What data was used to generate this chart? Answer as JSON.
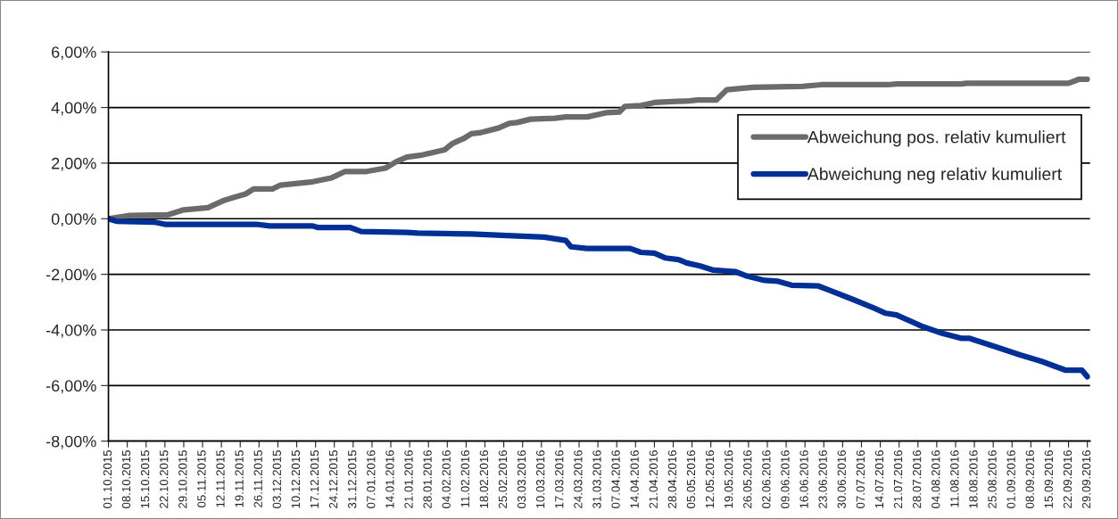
{
  "chart_data": {
    "type": "line",
    "series": [
      {
        "name": "Abweichung pos. relativ kumuliert",
        "color": "#6b6b6b",
        "x": [
          "2015-10-01",
          "2015-10-09",
          "2015-10-23",
          "2015-10-29",
          "2015-11-07",
          "2015-11-13",
          "2015-11-21",
          "2015-11-24",
          "2015-12-01",
          "2015-12-04",
          "2015-12-16",
          "2015-12-23",
          "2015-12-28",
          "2016-01-05",
          "2016-01-12",
          "2016-01-16",
          "2016-01-20",
          "2016-01-25",
          "2016-02-03",
          "2016-02-06",
          "2016-02-10",
          "2016-02-13",
          "2016-02-16",
          "2016-02-23",
          "2016-02-27",
          "2016-03-01",
          "2016-03-06",
          "2016-03-15",
          "2016-03-19",
          "2016-03-27",
          "2016-04-03",
          "2016-04-08",
          "2016-04-10",
          "2016-04-16",
          "2016-04-21",
          "2016-05-04",
          "2016-05-07",
          "2016-05-14",
          "2016-05-18",
          "2016-05-25",
          "2016-05-28",
          "2016-06-15",
          "2016-06-22",
          "2016-07-17",
          "2016-07-20",
          "2016-08-13",
          "2016-08-15",
          "2016-09-22",
          "2016-09-26",
          "2016-09-29"
        ],
        "values": [
          0,
          0.12,
          0.14,
          0.32,
          0.4,
          0.66,
          0.89,
          1.07,
          1.07,
          1.21,
          1.33,
          1.47,
          1.7,
          1.7,
          1.82,
          2.05,
          2.22,
          2.28,
          2.48,
          2.71,
          2.88,
          3.06,
          3.09,
          3.26,
          3.43,
          3.46,
          3.58,
          3.61,
          3.66,
          3.66,
          3.81,
          3.84,
          4.04,
          4.07,
          4.18,
          4.24,
          4.27,
          4.27,
          4.64,
          4.7,
          4.73,
          4.76,
          4.82,
          4.82,
          4.85,
          4.85,
          4.87,
          4.87,
          5.02,
          5.02
        ]
      },
      {
        "name": "Abweichung neg relativ kumuliert",
        "color": "#002f96",
        "x": [
          "2015-10-01",
          "2015-10-04",
          "2015-10-18",
          "2015-10-22",
          "2015-11-25",
          "2015-11-30",
          "2015-12-16",
          "2015-12-18",
          "2015-12-30",
          "2016-01-03",
          "2016-01-20",
          "2016-01-24",
          "2016-02-13",
          "2016-02-28",
          "2016-03-11",
          "2016-03-19",
          "2016-03-21",
          "2016-03-27",
          "2016-04-12",
          "2016-04-16",
          "2016-04-21",
          "2016-04-25",
          "2016-04-30",
          "2016-05-03",
          "2016-05-08",
          "2016-05-13",
          "2016-05-21",
          "2016-05-25",
          "2016-06-01",
          "2016-06-06",
          "2016-06-11",
          "2016-06-21",
          "2016-06-25",
          "2016-07-04",
          "2016-07-12",
          "2016-07-16",
          "2016-07-20",
          "2016-07-30",
          "2016-08-06",
          "2016-08-13",
          "2016-08-16",
          "2016-08-27",
          "2016-09-04",
          "2016-09-12",
          "2016-09-21",
          "2016-09-27",
          "2016-09-29"
        ],
        "values": [
          0,
          -0.09,
          -0.12,
          -0.2,
          -0.2,
          -0.26,
          -0.26,
          -0.32,
          -0.32,
          -0.46,
          -0.49,
          -0.52,
          -0.55,
          -0.61,
          -0.66,
          -0.78,
          -1.01,
          -1.07,
          -1.07,
          -1.21,
          -1.24,
          -1.41,
          -1.47,
          -1.59,
          -1.7,
          -1.85,
          -1.9,
          -2.05,
          -2.22,
          -2.25,
          -2.39,
          -2.42,
          -2.57,
          -2.91,
          -3.23,
          -3.4,
          -3.46,
          -3.89,
          -4.12,
          -4.3,
          -4.3,
          -4.64,
          -4.9,
          -5.13,
          -5.45,
          -5.45,
          -5.68
        ]
      }
    ],
    "xlim": [
      "2015-10-01",
      "2016-09-30"
    ],
    "xticks": [
      {
        "value": "2015-10-01",
        "label": "01.10.2015"
      },
      {
        "value": "2015-10-08",
        "label": "08.10.2015"
      },
      {
        "value": "2015-10-15",
        "label": "15.10.2015"
      },
      {
        "value": "2015-10-22",
        "label": "22.10.2015"
      },
      {
        "value": "2015-10-29",
        "label": "29.10.2015"
      },
      {
        "value": "2015-11-05",
        "label": "05.11.2015"
      },
      {
        "value": "2015-11-12",
        "label": "12.11.2015"
      },
      {
        "value": "2015-11-19",
        "label": "19.11.2015"
      },
      {
        "value": "2015-11-26",
        "label": "26.11.2015"
      },
      {
        "value": "2015-12-03",
        "label": "03.12.2015"
      },
      {
        "value": "2015-12-10",
        "label": "10.12.2015"
      },
      {
        "value": "2015-12-17",
        "label": "17.12.2015"
      },
      {
        "value": "2015-12-24",
        "label": "24.12.2015"
      },
      {
        "value": "2015-12-31",
        "label": "31.12.2015"
      },
      {
        "value": "2016-01-07",
        "label": "07.01.2016"
      },
      {
        "value": "2016-01-14",
        "label": "14.01.2016"
      },
      {
        "value": "2016-01-21",
        "label": "21.01.2016"
      },
      {
        "value": "2016-01-28",
        "label": "28.01.2016"
      },
      {
        "value": "2016-02-04",
        "label": "04.02.2016"
      },
      {
        "value": "2016-02-11",
        "label": "11.02.2016"
      },
      {
        "value": "2016-02-18",
        "label": "18.02.2016"
      },
      {
        "value": "2016-02-25",
        "label": "25.02.2016"
      },
      {
        "value": "2016-03-03",
        "label": "03.03.2016"
      },
      {
        "value": "2016-03-10",
        "label": "10.03.2016"
      },
      {
        "value": "2016-03-17",
        "label": "17.03.2016"
      },
      {
        "value": "2016-03-24",
        "label": "24.03.2016"
      },
      {
        "value": "2016-03-31",
        "label": "31.03.2016"
      },
      {
        "value": "2016-04-07",
        "label": "07.04.2016"
      },
      {
        "value": "2016-04-14",
        "label": "14.04.2016"
      },
      {
        "value": "2016-04-21",
        "label": "21.04.2016"
      },
      {
        "value": "2016-04-28",
        "label": "28.04.2016"
      },
      {
        "value": "2016-05-05",
        "label": "05.05.2016"
      },
      {
        "value": "2016-05-12",
        "label": "12.05.2016"
      },
      {
        "value": "2016-05-19",
        "label": "19.05.2016"
      },
      {
        "value": "2016-05-26",
        "label": "26.05.2016"
      },
      {
        "value": "2016-06-02",
        "label": "02.06.2016"
      },
      {
        "value": "2016-06-09",
        "label": "09.06.2016"
      },
      {
        "value": "2016-06-16",
        "label": "16.06.2016"
      },
      {
        "value": "2016-06-23",
        "label": "23.06.2016"
      },
      {
        "value": "2016-06-30",
        "label": "30.06.2016"
      },
      {
        "value": "2016-07-07",
        "label": "07.07.2016"
      },
      {
        "value": "2016-07-14",
        "label": "14.07.2016"
      },
      {
        "value": "2016-07-21",
        "label": "21.07.2016"
      },
      {
        "value": "2016-07-28",
        "label": "28.07.2016"
      },
      {
        "value": "2016-08-04",
        "label": "04.08.2016"
      },
      {
        "value": "2016-08-11",
        "label": "11.08.2016"
      },
      {
        "value": "2016-08-18",
        "label": "18.08.2016"
      },
      {
        "value": "2016-08-25",
        "label": "25.08.2016"
      },
      {
        "value": "2016-09-01",
        "label": "01.09.2016"
      },
      {
        "value": "2016-09-08",
        "label": "08.09.2016"
      },
      {
        "value": "2016-09-15",
        "label": "15.09.2016"
      },
      {
        "value": "2016-09-22",
        "label": "22.09.2016"
      },
      {
        "value": "2016-09-29",
        "label": "29.09.2016"
      }
    ],
    "ylim": [
      -8,
      6
    ],
    "yticks": [
      {
        "value": -8,
        "label": "-8,00%"
      },
      {
        "value": -6,
        "label": "-6,00%"
      },
      {
        "value": -4,
        "label": "-4,00%"
      },
      {
        "value": -2,
        "label": "-2,00%"
      },
      {
        "value": 0,
        "label": "0,00%"
      },
      {
        "value": 2,
        "label": "2,00%"
      },
      {
        "value": 4,
        "label": "4,00%"
      },
      {
        "value": 6,
        "label": "6,00%"
      }
    ],
    "grid": "y",
    "legend": "right",
    "marker": "none",
    "line_style": "solid"
  }
}
